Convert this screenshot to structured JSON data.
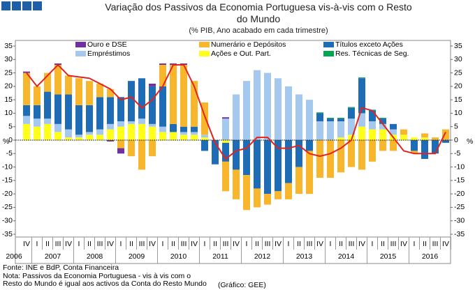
{
  "chart_data": {
    "type": "bar",
    "title": "Variação dos Passivos da Economia Portuguesa vis-à-vis com o Resto do Mundo",
    "subtitle": "(% PIB, Ano acabado em cada trimestre)",
    "y_label": "%",
    "categories": [
      "IV",
      "I",
      "II",
      "III",
      "IV",
      "I",
      "II",
      "III",
      "IV",
      "I",
      "II",
      "III",
      "IV",
      "I",
      "II",
      "III",
      "IV",
      "I",
      "II",
      "III",
      "IV",
      "I",
      "II",
      "III",
      "IV",
      "I",
      "II",
      "III",
      "IV",
      "I",
      "II",
      "III",
      "IV",
      "I",
      "II",
      "III",
      "IV",
      "I",
      "II",
      "III",
      "IV"
    ],
    "years": [
      "2006",
      "2007",
      "2008",
      "2009",
      "2010",
      "2011",
      "2012",
      "2013",
      "2014",
      "2015",
      "2016"
    ],
    "ylim": [
      -35,
      35
    ],
    "yticks": [
      35,
      30,
      25,
      20,
      15,
      10,
      5,
      0,
      -5,
      -10,
      -15,
      -20,
      -25,
      -30,
      -35
    ],
    "series": [
      {
        "name": "Ouro e DSE",
        "color": "#7030a0",
        "values": [
          0.5,
          0,
          0,
          0.5,
          0,
          0,
          0,
          0,
          -0.5,
          -2,
          0,
          0,
          1,
          0.5,
          0.5,
          0.5,
          0,
          0,
          0,
          0.5,
          0,
          0,
          0,
          0,
          0,
          0,
          0,
          0,
          0,
          0,
          0,
          0,
          0,
          0,
          0,
          0,
          0,
          0,
          0,
          0,
          0
        ]
      },
      {
        "name": "Empréstimos",
        "color": "#a4c8ee",
        "values": [
          3,
          3,
          2,
          3,
          3,
          1,
          1,
          2,
          2,
          2,
          1,
          2,
          1,
          2,
          0,
          1,
          1,
          1,
          0,
          8,
          17,
          22,
          26,
          25,
          23,
          20,
          17,
          15,
          7,
          7,
          6,
          6,
          5,
          3,
          2,
          2,
          0,
          0,
          0,
          0,
          0
        ]
      },
      {
        "name": "Numerário e Depósitos",
        "color": "#f8b62c",
        "values": [
          12,
          7,
          7,
          11,
          7,
          10,
          9,
          5,
          3,
          -3,
          -6,
          -11,
          -6,
          8,
          22,
          23,
          17,
          12,
          0,
          -11,
          -11,
          -13,
          -7,
          -4,
          -3,
          -6,
          -10,
          -16,
          -14,
          -14,
          -12,
          -10,
          -11,
          -8,
          -4,
          -4,
          2,
          -1,
          1.5,
          1,
          4
        ]
      },
      {
        "name": "Ações e Out. Part.",
        "color": "#ffff1a",
        "values": [
          6,
          5,
          6,
          3,
          1,
          1,
          2,
          2,
          4,
          5,
          6,
          6,
          5,
          3,
          3,
          2,
          2,
          1,
          0,
          -1,
          0,
          0,
          0,
          0,
          0,
          0,
          0,
          0,
          0,
          0,
          1,
          2,
          5,
          4,
          4,
          2,
          2,
          1,
          1,
          0,
          0
        ]
      },
      {
        "name": "Títulos exceto Ações",
        "color": "#1e6cb6",
        "values": [
          4,
          5,
          10,
          11,
          13,
          11,
          10,
          12,
          10,
          9,
          15,
          15,
          14,
          15,
          3,
          2,
          2,
          -4,
          -9,
          -7,
          -11,
          -13,
          -18,
          -20,
          -19,
          -16,
          -10,
          -4,
          3,
          1,
          1,
          4,
          13,
          4,
          2,
          2,
          0,
          -4,
          -7,
          -5,
          -1
        ]
      },
      {
        "name": "Res. Técnicas de Seg.",
        "color": "#00a651",
        "values": [
          0,
          0,
          0,
          0,
          0,
          0,
          0,
          0,
          0,
          0,
          0,
          0,
          0,
          0,
          0,
          0,
          0,
          0,
          0,
          0,
          0,
          0,
          0,
          0,
          0,
          0,
          0,
          0,
          0.3,
          0.3,
          0.3,
          0.3,
          0.3,
          0.3,
          0.3,
          0,
          0,
          0,
          0,
          0,
          0
        ]
      }
    ],
    "line": {
      "color": "#e3231b",
      "values": [
        25,
        20,
        24,
        28,
        24,
        23.5,
        23,
        21,
        19,
        15,
        16,
        12,
        15,
        20,
        28,
        28,
        20,
        9,
        -1,
        -7,
        -4,
        -3,
        1,
        1,
        -3,
        -3,
        -2,
        -5,
        -6,
        -5,
        -3,
        0,
        12,
        11,
        6,
        1,
        -4,
        -5,
        -5,
        -5,
        3
      ]
    },
    "source": "Fonte: INE e BdP, Conta Financeira",
    "note_lines": [
      "Nota: Passivos da Economia Portuguesa - vis à vis com o",
      "Resto do Mundo é igual aos activos da Conta do Resto Mundo"
    ],
    "credit": "(Gráfico: GEE)"
  }
}
